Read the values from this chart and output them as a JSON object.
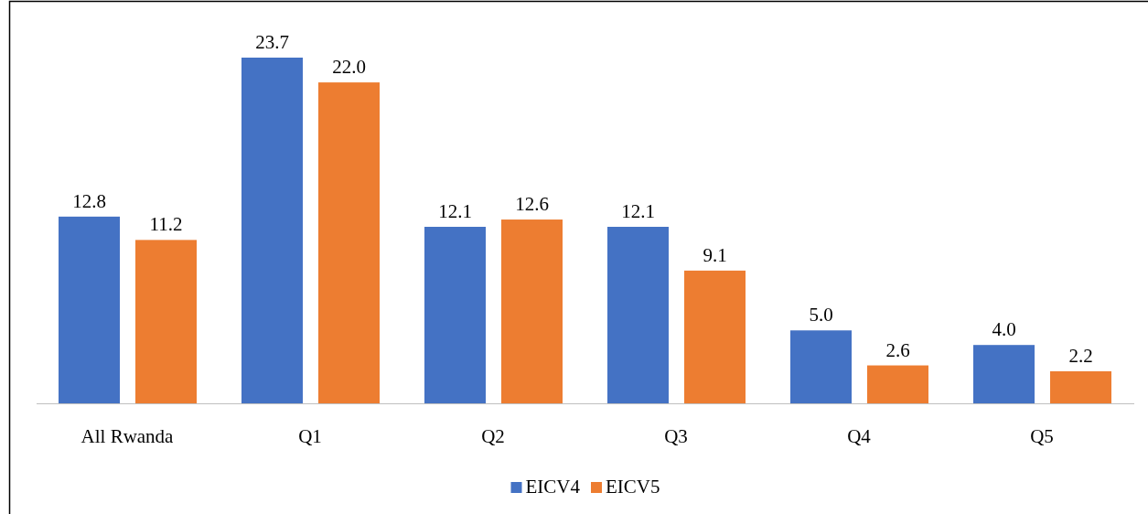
{
  "chart_data": {
    "type": "bar",
    "categories": [
      "All Rwanda",
      "Q1",
      "Q2",
      "Q3",
      "Q4",
      "Q5"
    ],
    "series": [
      {
        "name": "EICV4",
        "color": "#4472c4",
        "values": [
          12.8,
          23.7,
          12.1,
          12.1,
          5,
          4
        ],
        "value_labels": [
          "12.8",
          "23.7",
          "12.1",
          "12.1",
          "5.0",
          "4.0"
        ]
      },
      {
        "name": "EICV5",
        "color": "#ed7d31",
        "values": [
          11.2,
          22,
          12.6,
          9.1,
          2.6,
          2.2
        ],
        "value_labels": [
          "11.2",
          "22.0",
          "12.6",
          "9.1",
          "2.6",
          "2.2"
        ]
      }
    ],
    "legend": "bottom"
  }
}
